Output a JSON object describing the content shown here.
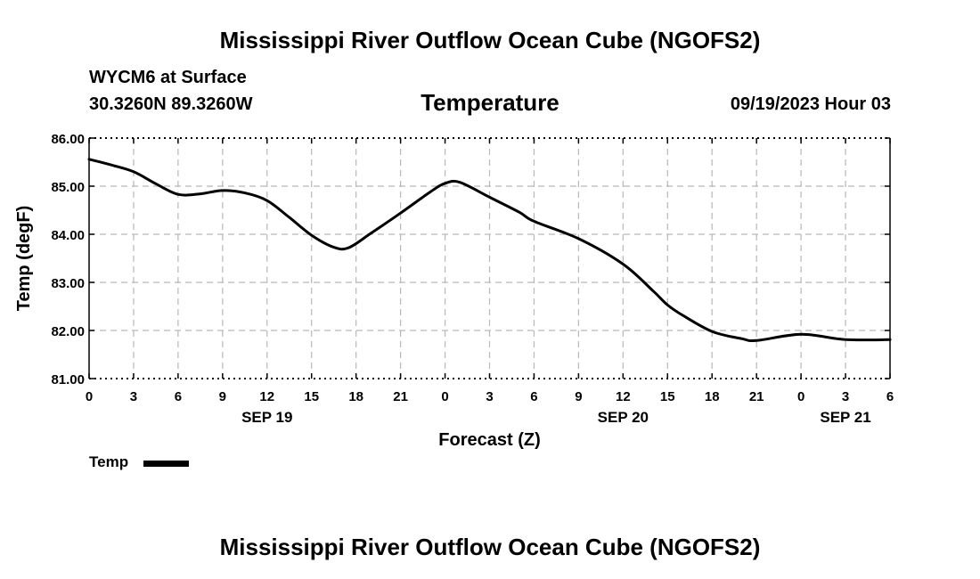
{
  "header": {
    "title": "Mississippi River Outflow Ocean Cube (NGOFS2)",
    "station": "WYCM6 at Surface",
    "coords": "30.3260N  89.3260W",
    "timestamp": "09/19/2023 Hour 03"
  },
  "footer": {
    "title": "Mississippi River Outflow Ocean Cube (NGOFS2)"
  },
  "legend": {
    "label": "Temp"
  },
  "chart_data": {
    "type": "line",
    "title": "Temperature",
    "xlabel": "Forecast (Z)",
    "ylabel": "Temp (degF)",
    "xlim": [
      0,
      54
    ],
    "ylim": [
      81,
      86
    ],
    "grid": true,
    "legend_position": "bottom-left",
    "x_ticks": [
      0,
      3,
      6,
      9,
      12,
      15,
      18,
      21,
      24,
      27,
      30,
      33,
      36,
      39,
      42,
      45,
      48,
      51,
      54
    ],
    "x_tick_labels": [
      "0",
      "3",
      "6",
      "9",
      "12",
      "15",
      "18",
      "21",
      "0",
      "3",
      "6",
      "9",
      "12",
      "15",
      "18",
      "21",
      "0",
      "3",
      "6"
    ],
    "y_ticks": [
      81,
      82,
      83,
      84,
      85,
      86
    ],
    "y_tick_labels": [
      "81.00",
      "82.00",
      "83.00",
      "84.00",
      "85.00",
      "86.00"
    ],
    "date_labels": [
      {
        "x": 12,
        "label": "SEP 19"
      },
      {
        "x": 36,
        "label": "SEP 20"
      },
      {
        "x": 51,
        "label": "SEP 21"
      }
    ],
    "series": [
      {
        "name": "Temp",
        "color": "#000000",
        "x": [
          0,
          1.5,
          3,
          4.5,
          6,
          7.5,
          9,
          10.5,
          12,
          13.5,
          15,
          16.5,
          17.5,
          19,
          21,
          23,
          24,
          25,
          27,
          29,
          30,
          33,
          36,
          38,
          39,
          40,
          42,
          44,
          45,
          48,
          51,
          54
        ],
        "y": [
          85.56,
          85.44,
          85.3,
          85.05,
          84.83,
          84.84,
          84.91,
          84.86,
          84.7,
          84.35,
          83.98,
          83.73,
          83.72,
          84.02,
          84.44,
          84.88,
          85.06,
          85.08,
          84.77,
          84.46,
          84.27,
          83.91,
          83.38,
          82.83,
          82.53,
          82.32,
          81.98,
          81.83,
          81.79,
          81.92,
          81.81,
          81.81
        ]
      }
    ]
  }
}
